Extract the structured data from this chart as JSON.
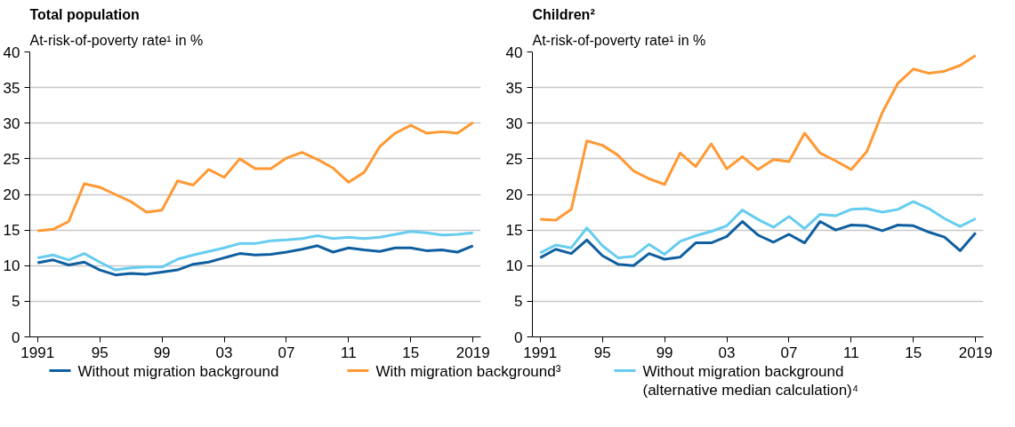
{
  "chart_data": [
    {
      "type": "line",
      "title": "Total population",
      "ylabel": "At-risk-of-poverty rate¹ in %",
      "x": [
        1991,
        1992,
        1993,
        1994,
        1995,
        1996,
        1997,
        1998,
        1999,
        2000,
        2001,
        2002,
        2003,
        2004,
        2005,
        2006,
        2007,
        2008,
        2009,
        2010,
        2011,
        2012,
        2013,
        2014,
        2015,
        2016,
        2017,
        2018,
        2019
      ],
      "xlim": [
        1990.5,
        2019.5
      ],
      "xticks": [
        1991,
        {
          "value": 1995,
          "label": "95"
        },
        {
          "value": 1999,
          "label": "99"
        },
        {
          "value": 2003,
          "label": "03"
        },
        {
          "value": 2007,
          "label": "07"
        },
        {
          "value": 2011,
          "label": "11"
        },
        {
          "value": 2015,
          "label": "15"
        },
        2019
      ],
      "ylim": [
        0,
        40
      ],
      "yticks": [
        0,
        5,
        10,
        15,
        20,
        25,
        30,
        35,
        40
      ],
      "grid": "y",
      "legend": "bottom",
      "marker": "none",
      "line_style": "solid",
      "series": [
        {
          "name": "Without migration background",
          "color": "#0f5fa0",
          "values": [
            10.4,
            10.8,
            10.1,
            10.5,
            9.4,
            8.7,
            8.9,
            8.8,
            9.1,
            9.4,
            10.2,
            10.5,
            11.1,
            11.7,
            11.5,
            11.6,
            11.9,
            12.3,
            12.8,
            11.9,
            12.5,
            12.2,
            12.0,
            12.5,
            12.5,
            12.1,
            12.2,
            11.9,
            12.8
          ]
        },
        {
          "name": "With migration background³",
          "color": "#ff9933",
          "values": [
            14.9,
            15.1,
            16.2,
            21.5,
            21.0,
            20.0,
            19.0,
            17.5,
            17.8,
            21.9,
            21.3,
            23.5,
            22.4,
            25.0,
            23.6,
            23.6,
            25.1,
            25.9,
            24.9,
            23.7,
            21.7,
            23.1,
            26.7,
            28.6,
            29.7,
            28.6,
            28.8,
            28.6,
            30.1
          ]
        },
        {
          "name": "Without migration background (alternative median calculation)⁴",
          "color": "#66ccf0",
          "values": [
            11.1,
            11.5,
            10.8,
            11.7,
            10.5,
            9.4,
            9.7,
            9.8,
            9.8,
            10.9,
            11.5,
            12.0,
            12.5,
            13.1,
            13.1,
            13.5,
            13.6,
            13.8,
            14.2,
            13.8,
            14.0,
            13.8,
            14.0,
            14.4,
            14.8,
            14.6,
            14.3,
            14.4,
            14.6
          ]
        }
      ]
    },
    {
      "type": "line",
      "title": "Children²",
      "ylabel": "At-risk-of-poverty rate¹ in %",
      "x": [
        1991,
        1992,
        1993,
        1994,
        1995,
        1996,
        1997,
        1998,
        1999,
        2000,
        2001,
        2002,
        2003,
        2004,
        2005,
        2006,
        2007,
        2008,
        2009,
        2010,
        2011,
        2012,
        2013,
        2014,
        2015,
        2016,
        2017,
        2018,
        2019
      ],
      "xlim": [
        1990.5,
        2019.5
      ],
      "xticks": [
        1991,
        {
          "value": 1995,
          "label": "95"
        },
        {
          "value": 1999,
          "label": "99"
        },
        {
          "value": 2003,
          "label": "03"
        },
        {
          "value": 2007,
          "label": "07"
        },
        {
          "value": 2011,
          "label": "11"
        },
        {
          "value": 2015,
          "label": "15"
        },
        2019
      ],
      "ylim": [
        0,
        40
      ],
      "yticks": [
        0,
        5,
        10,
        15,
        20,
        25,
        30,
        35,
        40
      ],
      "grid": "y",
      "marker": "none",
      "line_style": "solid",
      "series": [
        {
          "color": "#0f5fa0",
          "values": [
            11.1,
            12.3,
            11.7,
            13.6,
            11.4,
            10.2,
            10.0,
            11.7,
            10.9,
            11.2,
            13.2,
            13.2,
            14.1,
            16.2,
            14.3,
            13.3,
            14.4,
            13.2,
            16.2,
            15.0,
            15.7,
            15.6,
            14.9,
            15.7,
            15.6,
            14.7,
            14.0,
            12.1,
            14.6
          ]
        },
        {
          "color": "#ff9933",
          "values": [
            16.5,
            16.4,
            17.9,
            27.5,
            26.9,
            25.5,
            23.3,
            22.2,
            21.4,
            25.8,
            23.9,
            27.1,
            23.6,
            25.3,
            23.5,
            24.9,
            24.6,
            28.6,
            25.8,
            24.7,
            23.5,
            26.0,
            31.5,
            35.6,
            37.6,
            37.0,
            37.3,
            38.1,
            39.5
          ]
        },
        {
          "color": "#66ccf0",
          "values": [
            11.8,
            12.9,
            12.5,
            15.3,
            12.8,
            11.1,
            11.3,
            13.0,
            11.6,
            13.4,
            14.2,
            14.8,
            15.6,
            17.8,
            16.5,
            15.4,
            16.9,
            15.2,
            17.2,
            17.0,
            17.9,
            18.0,
            17.5,
            17.9,
            19.0,
            18.0,
            16.6,
            15.5,
            16.6
          ]
        }
      ]
    }
  ]
}
